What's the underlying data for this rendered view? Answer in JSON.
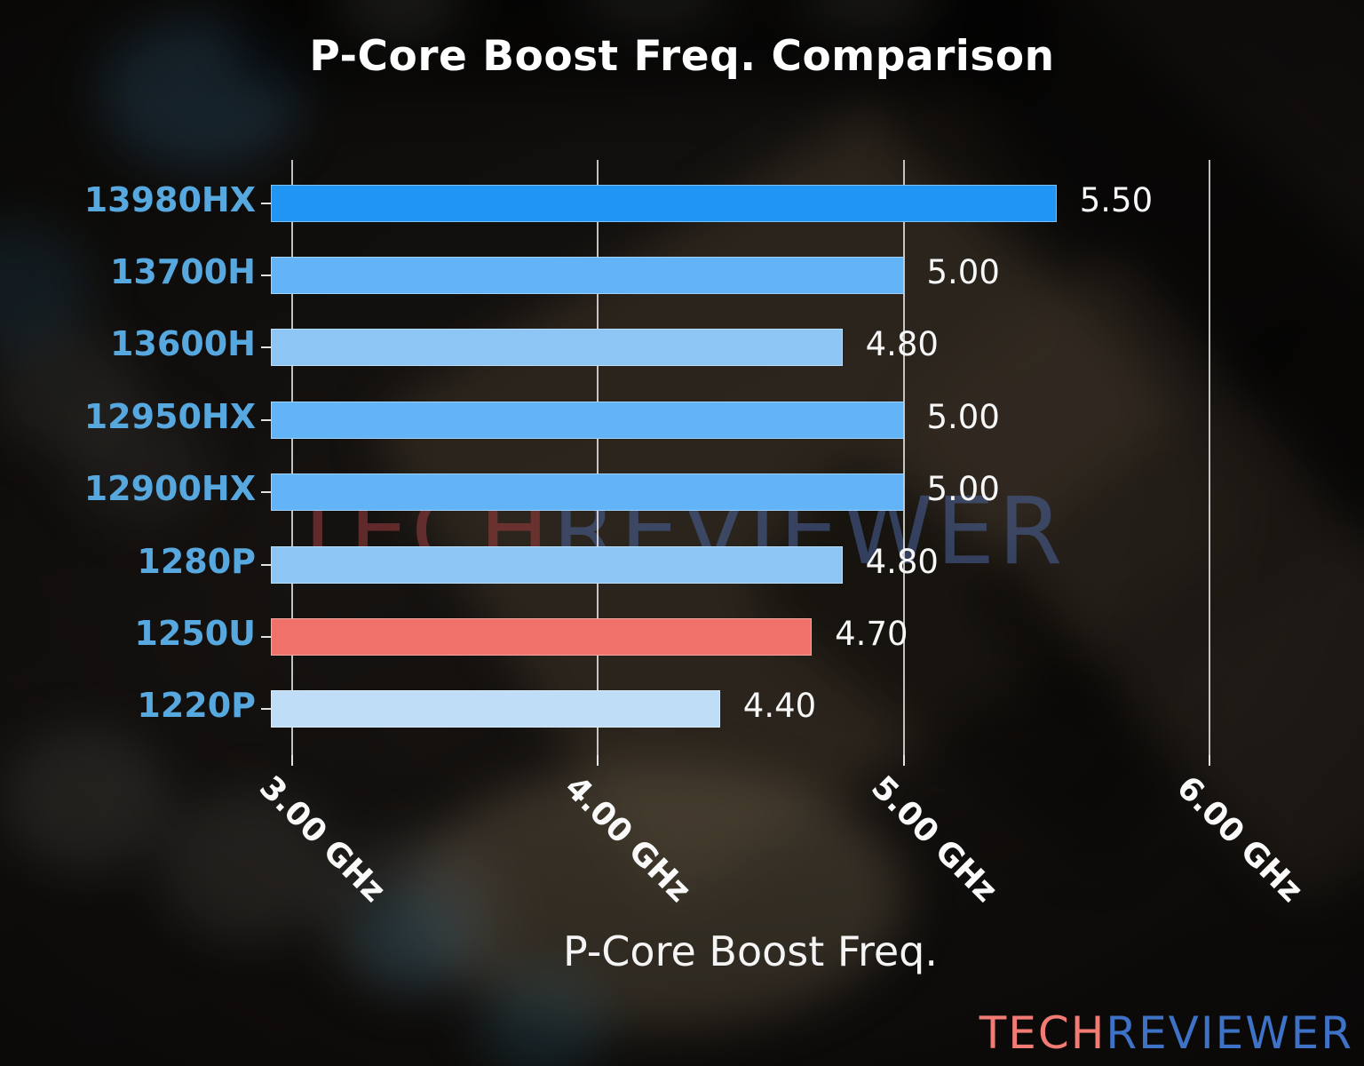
{
  "title": "P-Core Boost Freq. Comparison",
  "xlabel": "P-Core Boost Freq.",
  "watermark": {
    "tech": "TECH",
    "reviewer": "REVIEWER"
  },
  "logo": {
    "tech": "TECH",
    "reviewer": "REVIEWER"
  },
  "chart_data": {
    "type": "bar",
    "orientation": "horizontal",
    "title": "P-Core Boost Freq. Comparison",
    "xlabel": "P-Core Boost Freq.",
    "categories": [
      "13980HX",
      "13700H",
      "13600H",
      "12950HX",
      "12900HX",
      "1280P",
      "1250U",
      "1220P"
    ],
    "values": [
      5.5,
      5.0,
      4.8,
      5.0,
      5.0,
      4.8,
      4.7,
      4.4
    ],
    "value_labels": [
      "5.50",
      "5.00",
      "4.80",
      "5.00",
      "5.00",
      "4.80",
      "4.70",
      "4.40"
    ],
    "bar_colors": [
      "#2095f3",
      "#63b4f6",
      "#8dc6f4",
      "#63b4f6",
      "#63b4f6",
      "#8dc6f4",
      "#f0716a",
      "#c0ddf8"
    ],
    "x_ticks": [
      {
        "value": 3,
        "label": "3.00 GHz"
      },
      {
        "value": 4,
        "label": "4.00 GHz"
      },
      {
        "value": 5,
        "label": "5.00 GHz"
      },
      {
        "value": 6,
        "label": "6.00 GHz"
      }
    ],
    "xlim": [
      2.93,
      6.5
    ],
    "grid": "vertical-only",
    "legend": "none",
    "category_label_color": "#58a8e0",
    "value_label_color": "#ffffff",
    "highlight_color": "#f0716a",
    "background_style": "dark blurred CPU/motherboard photo"
  }
}
